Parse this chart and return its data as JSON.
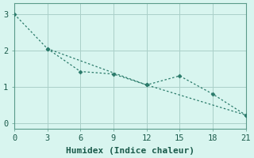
{
  "line1_x": [
    0,
    3,
    12,
    21
  ],
  "line1_y": [
    3.0,
    2.05,
    1.05,
    0.22
  ],
  "line2_x": [
    3,
    6,
    9,
    12,
    15,
    18,
    21
  ],
  "line2_y": [
    2.05,
    1.42,
    1.35,
    1.05,
    1.3,
    0.8,
    0.22
  ],
  "line_color": "#2a7a6a",
  "bg_color": "#d8f5ef",
  "grid_color": "#aacfc8",
  "spine_color": "#5a9a8a",
  "xlabel": "Humidex (Indice chaleur)",
  "xlim": [
    0,
    21
  ],
  "ylim": [
    -0.15,
    3.3
  ],
  "xticks": [
    0,
    3,
    6,
    9,
    12,
    15,
    18,
    21
  ],
  "yticks": [
    0,
    1,
    2,
    3
  ],
  "xlabel_fontsize": 8,
  "tick_fontsize": 7.5
}
